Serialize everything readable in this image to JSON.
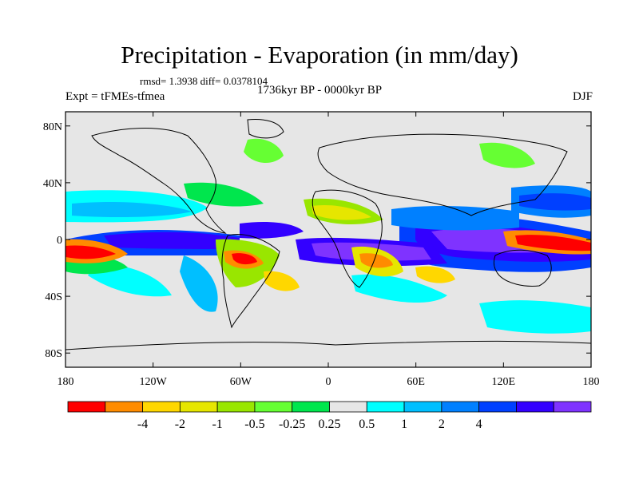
{
  "header": {
    "title": "Precipitation - Evaporation (in mm/day)",
    "stats": "rmsd= 1.3938  diff= 0.0378104",
    "experiment": "Expt = tFMEs-tfmea",
    "period": "1736kyr BP - 0000kyr BP",
    "season": "DJF"
  },
  "map": {
    "projection": "cylindrical-equidistant",
    "lon_range": [
      -180,
      180
    ],
    "lat_range": [
      -90,
      90
    ],
    "lat_ticks": [
      {
        "value": 80,
        "label": "80N"
      },
      {
        "value": 40,
        "label": "40N"
      },
      {
        "value": 0,
        "label": "0"
      },
      {
        "value": -40,
        "label": "40S"
      },
      {
        "value": -80,
        "label": "80S"
      }
    ],
    "lon_ticks": [
      {
        "value": -180,
        "label": "180"
      },
      {
        "value": -120,
        "label": "120W"
      },
      {
        "value": -60,
        "label": "60W"
      },
      {
        "value": 0,
        "label": "0"
      },
      {
        "value": 60,
        "label": "60E"
      },
      {
        "value": 120,
        "label": "120E"
      },
      {
        "value": 180,
        "label": "180"
      }
    ],
    "background_color": "#e6e6e6"
  },
  "colorbar": {
    "colors": [
      "#ff0000",
      "#ff8c00",
      "#ffd700",
      "#e6e600",
      "#99e600",
      "#66ff33",
      "#00e64d",
      "#e6e6e6",
      "#00ffff",
      "#00bfff",
      "#0080ff",
      "#0040ff",
      "#3300ff",
      "#7f33ff"
    ],
    "labels": [
      "-4",
      "-2",
      "-1",
      "-0.5",
      "-0.25",
      "0.25",
      "0.5",
      "1",
      "2",
      "4"
    ]
  }
}
